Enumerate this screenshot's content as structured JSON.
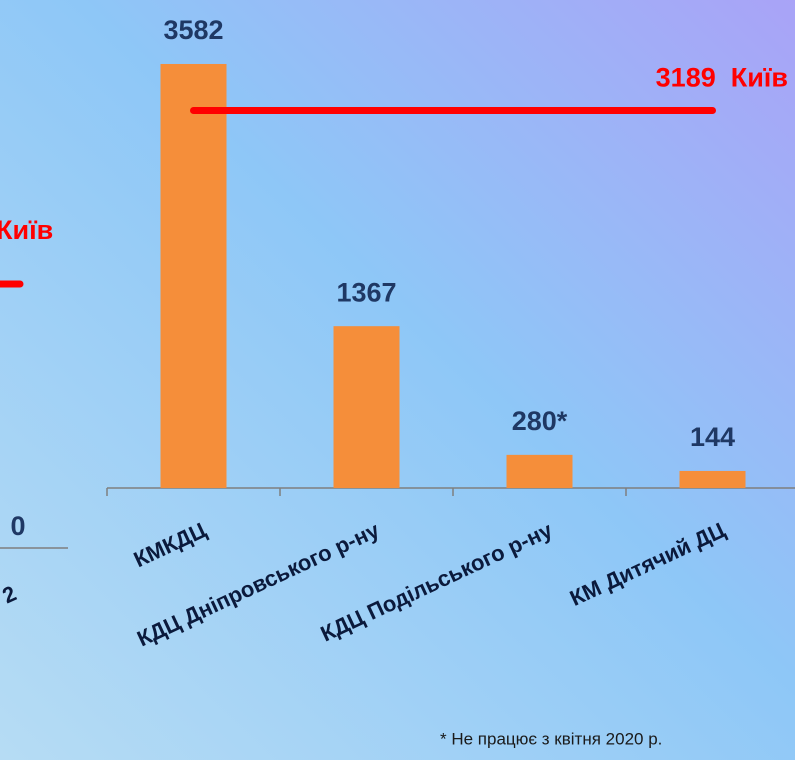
{
  "chart_data": {
    "type": "bar",
    "categories": [
      "КМКДЦ",
      "КДЦ Дніпровського р-ну",
      "КДЦ Подільського р-ну",
      "КМ Дитячий ДЦ"
    ],
    "values": [
      3582,
      1367,
      280,
      144
    ],
    "value_labels": [
      "3582",
      "1367",
      "280*",
      "144"
    ],
    "color": "#f58e3a",
    "ylim": [
      0,
      4000
    ],
    "reference": {
      "value": 3189,
      "label": "3189  Київ",
      "color": "#ff0000"
    },
    "footnote": "* Не працює з квітня 2020 р.",
    "left_fragment": {
      "reference_label": "Київ",
      "value_label": "0",
      "category_label": "2"
    }
  }
}
